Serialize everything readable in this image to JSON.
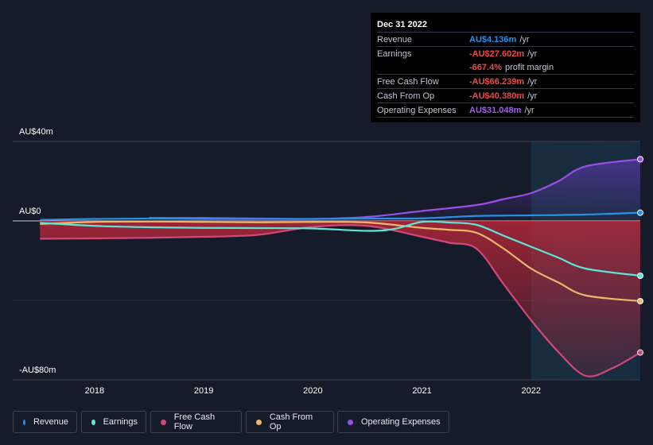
{
  "chart_data": {
    "type": "line",
    "currency": "AU$",
    "y_axis_labels": {
      "top": "AU$40m",
      "zero": "AU$0",
      "bottom": "-AU$80m"
    },
    "ylim": [
      -80,
      40
    ],
    "x_ticks": [
      "2018",
      "2019",
      "2020",
      "2021",
      "2022"
    ],
    "xlim": [
      2017.25,
      2023.0
    ],
    "highlight_start": 2022.0,
    "series": [
      {
        "name": "Revenue",
        "key": "revenue",
        "color": "#2b8fe6",
        "x": [
          2017.5,
          2018.0,
          2018.5,
          2019.0,
          2019.5,
          2020.0,
          2020.5,
          2021.0,
          2021.5,
          2022.0,
          2022.5,
          2023.0
        ],
        "values": [
          0.5,
          1.0,
          1.2,
          1.0,
          1.0,
          1.0,
          1.2,
          1.3,
          2.5,
          2.8,
          3.2,
          4.136
        ]
      },
      {
        "name": "Earnings",
        "key": "earnings",
        "color": "#5ce6d6",
        "x": [
          2017.5,
          2018.0,
          2018.5,
          2019.0,
          2019.5,
          2020.0,
          2020.5,
          2020.75,
          2021.0,
          2021.25,
          2021.5,
          2021.75,
          2022.0,
          2022.25,
          2022.5,
          2023.0
        ],
        "values": [
          -1.0,
          -2.5,
          -3.2,
          -3.5,
          -3.6,
          -3.8,
          -5.0,
          -4.0,
          -0.5,
          -0.8,
          -2.0,
          -7.5,
          -13.0,
          -18.5,
          -24.0,
          -27.602
        ]
      },
      {
        "name": "Free Cash Flow",
        "key": "fcf",
        "color": "#d0477a",
        "x": [
          2017.5,
          2018.0,
          2018.5,
          2019.0,
          2019.5,
          2020.0,
          2020.5,
          2021.0,
          2021.25,
          2021.5,
          2021.75,
          2022.0,
          2022.25,
          2022.5,
          2022.75,
          2023.0
        ],
        "values": [
          -9.0,
          -8.8,
          -8.5,
          -8.0,
          -7.0,
          -3.0,
          -2.5,
          -8.0,
          -11.0,
          -14.0,
          -32.0,
          -50.0,
          -66.0,
          -78.0,
          -74.0,
          -66.239
        ]
      },
      {
        "name": "Cash From Op",
        "key": "cfo",
        "color": "#e8b96b",
        "x": [
          2017.5,
          2018.0,
          2018.5,
          2019.0,
          2019.5,
          2020.0,
          2020.5,
          2021.0,
          2021.25,
          2021.5,
          2021.75,
          2022.0,
          2022.25,
          2022.5,
          2023.0
        ],
        "values": [
          -1.5,
          -0.5,
          -0.3,
          -0.5,
          -0.7,
          -0.5,
          -0.8,
          -3.5,
          -4.5,
          -6.0,
          -14.0,
          -24.0,
          -31.0,
          -37.5,
          -40.38
        ]
      },
      {
        "name": "Operating Expenses",
        "key": "opex",
        "color": "#9a4ee6",
        "x": [
          2018.5,
          2019.0,
          2019.5,
          2020.0,
          2020.5,
          2021.0,
          2021.5,
          2021.75,
          2022.0,
          2022.25,
          2022.5,
          2023.0
        ],
        "values": [
          1.5,
          1.5,
          1.2,
          1.0,
          2.0,
          5.0,
          8.0,
          11.0,
          14.0,
          20.0,
          27.5,
          31.048
        ]
      }
    ]
  },
  "tooltip": {
    "date": "Dec 31 2022",
    "rows": [
      {
        "label": "Revenue",
        "value": "AU$4.136m",
        "unit": "/yr",
        "color": "#2b8fe6"
      },
      {
        "label": "Earnings",
        "value": "-AU$27.602m",
        "unit": "/yr",
        "color": "#e64a4a"
      },
      {
        "label": "",
        "value": "-667.4%",
        "unit": "profit margin",
        "color": "#e64a4a"
      },
      {
        "label": "Free Cash Flow",
        "value": "-AU$66.239m",
        "unit": "/yr",
        "color": "#e64a4a"
      },
      {
        "label": "Cash From Op",
        "value": "-AU$40.380m",
        "unit": "/yr",
        "color": "#e64a4a"
      },
      {
        "label": "Operating Expenses",
        "value": "AU$31.048m",
        "unit": "/yr",
        "color": "#a35ef0"
      }
    ]
  },
  "legend": [
    {
      "label": "Revenue",
      "color": "#2b8fe6"
    },
    {
      "label": "Earnings",
      "color": "#5ce6d6"
    },
    {
      "label": "Free Cash Flow",
      "color": "#d0477a"
    },
    {
      "label": "Cash From Op",
      "color": "#e8b96b"
    },
    {
      "label": "Operating Expenses",
      "color": "#9a4ee6"
    }
  ]
}
